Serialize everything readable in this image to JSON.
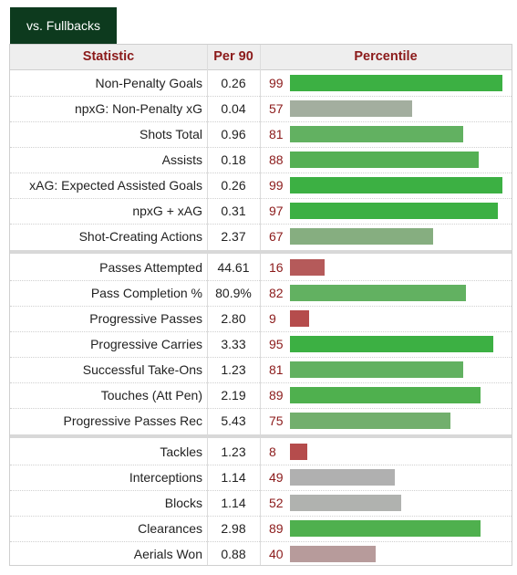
{
  "tab": {
    "label": "vs. Fullbacks"
  },
  "table": {
    "headers": {
      "statistic": "Statistic",
      "per90": "Per 90",
      "percentile": "Percentile"
    },
    "colors": {
      "high": "#3cb043",
      "mid_high": "#62b161",
      "mid": "#7fae7a",
      "neutral": "#a3a9a0",
      "gray": "#b0b0b0",
      "mauve": "#b79b9b",
      "low": "#b55454"
    },
    "groups": [
      [
        {
          "stat": "Non-Penalty Goals",
          "per90": "0.26",
          "pct": 99,
          "color": "#3cb043"
        },
        {
          "stat": "npxG: Non-Penalty xG",
          "per90": "0.04",
          "pct": 57,
          "color": "#a3ae9f"
        },
        {
          "stat": "Shots Total",
          "per90": "0.96",
          "pct": 81,
          "color": "#62b161"
        },
        {
          "stat": "Assists",
          "per90": "0.18",
          "pct": 88,
          "color": "#55b054"
        },
        {
          "stat": "xAG: Expected Assisted Goals",
          "per90": "0.26",
          "pct": 99,
          "color": "#3cb043"
        },
        {
          "stat": "npxG + xAG",
          "per90": "0.31",
          "pct": 97,
          "color": "#3cb043"
        },
        {
          "stat": "Shot-Creating Actions",
          "per90": "2.37",
          "pct": 67,
          "color": "#86ae80"
        }
      ],
      [
        {
          "stat": "Passes Attempted",
          "per90": "44.61",
          "pct": 16,
          "color": "#b55a5a"
        },
        {
          "stat": "Pass Completion %",
          "per90": "80.9%",
          "pct": 82,
          "color": "#62b161"
        },
        {
          "stat": "Progressive Passes",
          "per90": "2.80",
          "pct": 9,
          "color": "#b54c4c"
        },
        {
          "stat": "Progressive Carries",
          "per90": "3.33",
          "pct": 95,
          "color": "#3cb043"
        },
        {
          "stat": "Successful Take-Ons",
          "per90": "1.23",
          "pct": 81,
          "color": "#62b161"
        },
        {
          "stat": "Touches (Att Pen)",
          "per90": "2.19",
          "pct": 89,
          "color": "#4fb04e"
        },
        {
          "stat": "Progressive Passes Rec",
          "per90": "5.43",
          "pct": 75,
          "color": "#72af6d"
        }
      ],
      [
        {
          "stat": "Tackles",
          "per90": "1.23",
          "pct": 8,
          "color": "#b54c4c"
        },
        {
          "stat": "Interceptions",
          "per90": "1.14",
          "pct": 49,
          "color": "#b0b0b0"
        },
        {
          "stat": "Blocks",
          "per90": "1.14",
          "pct": 52,
          "color": "#b0b2af"
        },
        {
          "stat": "Clearances",
          "per90": "2.98",
          "pct": 89,
          "color": "#4fb04e"
        },
        {
          "stat": "Aerials Won",
          "per90": "0.88",
          "pct": 40,
          "color": "#b79b9b"
        }
      ]
    ]
  }
}
